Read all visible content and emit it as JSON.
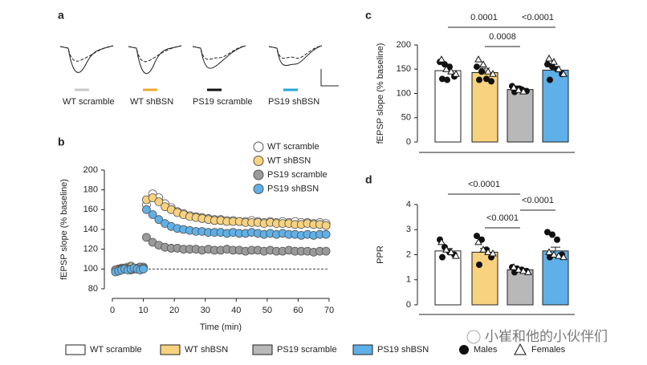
{
  "panel_a": {
    "panel": "a",
    "labels": [
      "WT scramble",
      "WT shBSN",
      "PS19 scramble",
      "PS19 shBSN"
    ]
  },
  "chart_data": [
    {
      "type": "scatter",
      "panel": "b",
      "x_label": "Time (min)",
      "y_label": "fEPSP slope (% baseline)",
      "x": [
        1,
        2,
        3,
        4,
        5,
        6,
        7,
        8,
        9,
        10,
        11,
        13,
        15,
        17,
        19,
        21,
        23,
        25,
        27,
        29,
        31,
        33,
        35,
        37,
        39,
        41,
        43,
        45,
        47,
        49,
        51,
        53,
        55,
        57,
        59,
        61,
        63,
        65,
        67,
        69
      ],
      "xlim": [
        0,
        70
      ],
      "xticks": [
        0,
        10,
        20,
        30,
        40,
        50,
        60,
        70
      ],
      "ylim": [
        80,
        200
      ],
      "yticks": [
        80,
        100,
        120,
        140,
        160,
        180,
        200
      ],
      "hline": 100,
      "series": [
        {
          "name": "WT scramble",
          "color": "#ffffff",
          "values": [
            99,
            100,
            101,
            100,
            102,
            103,
            100,
            101,
            102,
            100,
            165,
            176,
            172,
            166,
            162,
            158,
            156,
            154,
            153,
            152,
            151,
            150,
            150,
            149,
            149,
            148,
            148,
            149,
            148,
            147,
            148,
            147,
            148,
            147,
            148,
            147,
            147,
            146,
            147,
            146
          ]
        },
        {
          "name": "WT shBSN",
          "color": "#f9d27f",
          "values": [
            98,
            99,
            100,
            101,
            100,
            102,
            101,
            100,
            101,
            102,
            170,
            172,
            168,
            163,
            160,
            157,
            155,
            153,
            152,
            151,
            150,
            149,
            149,
            148,
            148,
            148,
            147,
            147,
            147,
            146,
            147,
            146,
            146,
            146,
            145,
            145,
            146,
            145,
            145,
            144
          ]
        },
        {
          "name": "PS19 scramble",
          "color": "#9a9a9a",
          "values": [
            99,
            98,
            100,
            101,
            100,
            99,
            101,
            100,
            102,
            101,
            132,
            127,
            124,
            122,
            121,
            121,
            120,
            120,
            120,
            119,
            120,
            119,
            119,
            120,
            119,
            119,
            118,
            119,
            119,
            118,
            119,
            118,
            118,
            119,
            118,
            118,
            118,
            117,
            118,
            118
          ]
        },
        {
          "name": "PS19 shBSN",
          "color": "#5fb0e8",
          "values": [
            97,
            98,
            99,
            100,
            99,
            100,
            101,
            100,
            99,
            100,
            160,
            155,
            150,
            146,
            143,
            141,
            140,
            139,
            138,
            138,
            137,
            137,
            137,
            136,
            137,
            136,
            136,
            137,
            136,
            135,
            136,
            135,
            136,
            135,
            135,
            134,
            135,
            134,
            135,
            135
          ]
        }
      ]
    },
    {
      "type": "bar",
      "panel": "c",
      "y_label": "fEPSP slope (% baseline)",
      "categories": [
        null,
        null,
        null,
        null
      ],
      "values": [
        147,
        143,
        108,
        148
      ],
      "errors": [
        8,
        9,
        3,
        7
      ],
      "ylim": [
        0,
        200
      ],
      "yticks": [
        0,
        50,
        100,
        150,
        200
      ],
      "males": [
        [
          165,
          160,
          155,
          135,
          130,
          128
        ],
        [
          155,
          145,
          130,
          125,
          128
        ],
        [
          115,
          110,
          108,
          105,
          103,
          110
        ],
        [
          160,
          155,
          150,
          140,
          128
        ]
      ],
      "females": [
        [
          170,
          150,
          145,
          140
        ],
        [
          170,
          160,
          145,
          140
        ],
        [
          112,
          107,
          104
        ],
        [
          172,
          165,
          150,
          140
        ]
      ],
      "comparisons": [
        "0.0001",
        "0.0008",
        "<0.0001"
      ]
    },
    {
      "type": "bar",
      "panel": "d",
      "y_label": "PPR",
      "categories": [
        null,
        null,
        null,
        null
      ],
      "values": [
        2.15,
        2.1,
        1.4,
        2.15
      ],
      "errors": [
        0.1,
        0.15,
        0.05,
        0.15
      ],
      "ylim": [
        0,
        4
      ],
      "yticks": [
        0,
        1,
        2,
        3,
        4
      ],
      "males": [
        [
          2.6,
          2.3,
          2.1,
          2.0,
          1.9
        ],
        [
          2.75,
          2.6,
          2.2,
          1.9,
          1.6
        ],
        [
          1.5,
          1.45,
          1.4,
          1.35,
          1.3
        ],
        [
          2.9,
          2.8,
          2.6,
          2.0,
          1.9
        ]
      ],
      "females": [
        [
          2.5,
          2.2,
          2.1,
          1.95
        ],
        [
          2.5,
          2.2,
          2.1,
          2.05
        ],
        [
          1.5,
          1.4,
          1.35,
          1.3
        ],
        [
          2.1,
          2.0,
          1.95,
          1.9
        ]
      ],
      "comparisons": [
        "<0.0001",
        "<0.0001",
        "<0.0001"
      ]
    }
  ],
  "legend": {
    "groups": [
      {
        "name": "WT scramble",
        "color": "#ffffff"
      },
      {
        "name": "WT shBSN",
        "color": "#f9d27f"
      },
      {
        "name": "PS19 scramble",
        "color": "#b8b8b8"
      },
      {
        "name": "PS19 shBSN",
        "color": "#5fb0e8"
      }
    ],
    "males": "Males",
    "females": "Females"
  },
  "watermark": "小崔和他的小伙伴们"
}
